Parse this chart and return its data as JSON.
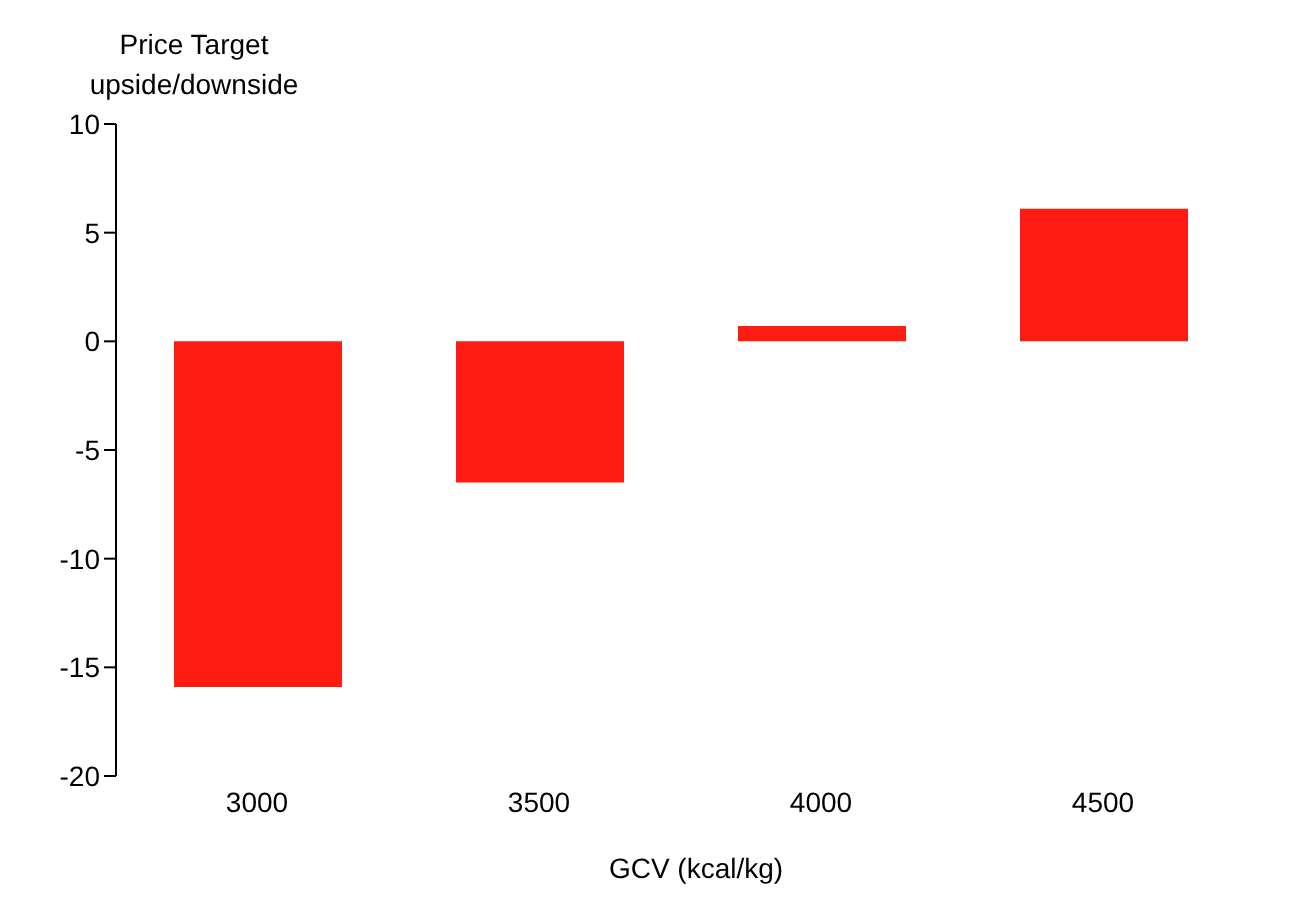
{
  "chart_data": {
    "type": "bar",
    "ylabel": "Price Target upside/downside",
    "xlabel": "GCV (kcal/kg)",
    "categories": [
      "3000",
      "3500",
      "4000",
      "4500"
    ],
    "values": [
      -15.9,
      -6.5,
      0.7,
      6.1
    ],
    "color": "#ff1a12",
    "ylim": [
      -20,
      10
    ],
    "yticks": [
      -20,
      -15,
      -10,
      -5,
      0,
      5,
      10
    ],
    "legend": false
  }
}
